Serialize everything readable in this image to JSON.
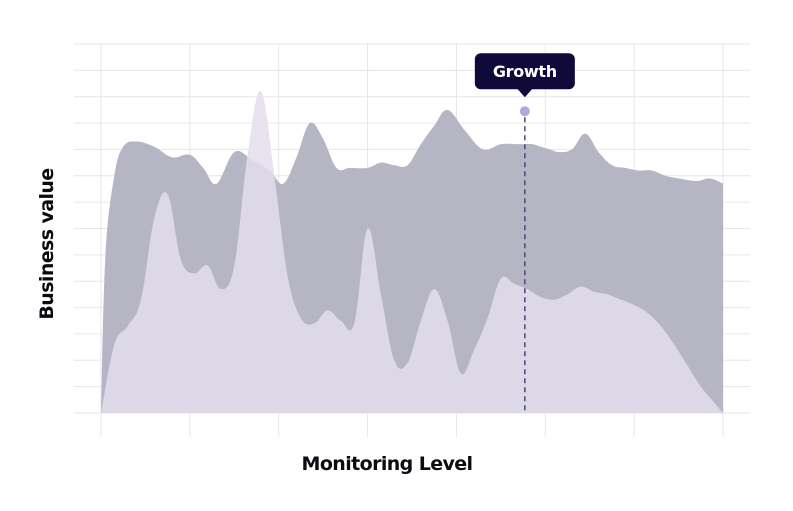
{
  "chart_data": {
    "type": "area",
    "title": "",
    "xlabel": "Monitoring Level",
    "ylabel": "Business value",
    "xlim": [
      0,
      7
    ],
    "ylim": [
      0,
      14
    ],
    "grid": true,
    "legend": "none",
    "colors": {
      "series_back": "#b6b5c4",
      "series_front": "#dcd8e8",
      "series_front_overlap": "#e8e3ef",
      "grid": "#e6e6ea",
      "tooltip_bg": "#100a3a",
      "marker": "#b9a6db",
      "guide": "#4c4770",
      "text": "#0b0b12"
    },
    "series": [
      {
        "x": [
          0,
          0.05,
          0.15,
          0.25,
          0.4,
          0.6,
          0.8,
          1.0,
          1.15,
          1.3,
          1.5,
          1.7,
          1.9,
          2.05,
          2.2,
          2.35,
          2.5,
          2.65,
          2.8,
          3.0,
          3.15,
          3.3,
          3.45,
          3.6,
          3.75,
          3.9,
          4.1,
          4.3,
          4.5,
          4.7,
          4.85,
          4.95,
          5.05,
          5.15,
          5.3,
          5.45,
          5.6,
          5.75,
          5.9,
          6.05,
          6.2,
          6.35,
          6.5,
          6.7,
          6.85,
          7.0
        ],
        "values": [
          0,
          6.0,
          9.0,
          10.1,
          10.3,
          10.1,
          9.7,
          9.8,
          9.3,
          8.7,
          9.9,
          9.6,
          9.2,
          8.7,
          9.7,
          11.0,
          10.4,
          9.3,
          9.3,
          9.3,
          9.5,
          9.4,
          9.4,
          10.2,
          10.9,
          11.5,
          10.7,
          10.0,
          10.2,
          10.2,
          10.2,
          10.1,
          10.0,
          9.9,
          10.0,
          10.6,
          9.9,
          9.4,
          9.3,
          9.2,
          9.2,
          9.0,
          8.9,
          8.8,
          8.9,
          8.7
        ]
      },
      {
        "x": [
          0,
          0.15,
          0.3,
          0.45,
          0.6,
          0.75,
          0.9,
          1.05,
          1.2,
          1.35,
          1.5,
          1.65,
          1.8,
          1.95,
          2.1,
          2.25,
          2.4,
          2.55,
          2.7,
          2.85,
          3.0,
          3.15,
          3.3,
          3.45,
          3.6,
          3.75,
          3.9,
          4.05,
          4.2,
          4.35,
          4.5,
          4.65,
          4.8,
          4.95,
          5.1,
          5.25,
          5.4,
          5.55,
          5.7,
          5.85,
          6.0,
          6.15,
          6.3,
          6.45,
          6.6,
          6.75,
          6.9,
          7.0
        ],
        "values": [
          0,
          2.6,
          3.3,
          4.3,
          7.4,
          8.3,
          5.8,
          5.3,
          5.6,
          4.7,
          5.6,
          9.8,
          12.2,
          9.0,
          5.2,
          3.6,
          3.4,
          3.9,
          3.5,
          3.4,
          7.0,
          4.5,
          2.0,
          1.9,
          3.5,
          4.7,
          3.5,
          1.5,
          2.4,
          3.6,
          5.1,
          4.9,
          4.7,
          4.4,
          4.3,
          4.5,
          4.8,
          4.6,
          4.5,
          4.3,
          4.1,
          3.8,
          3.3,
          2.6,
          1.8,
          1.0,
          0.4,
          0
        ]
      }
    ],
    "annotation": {
      "label": "Growth",
      "x": 4.77,
      "y": 11.45
    }
  }
}
